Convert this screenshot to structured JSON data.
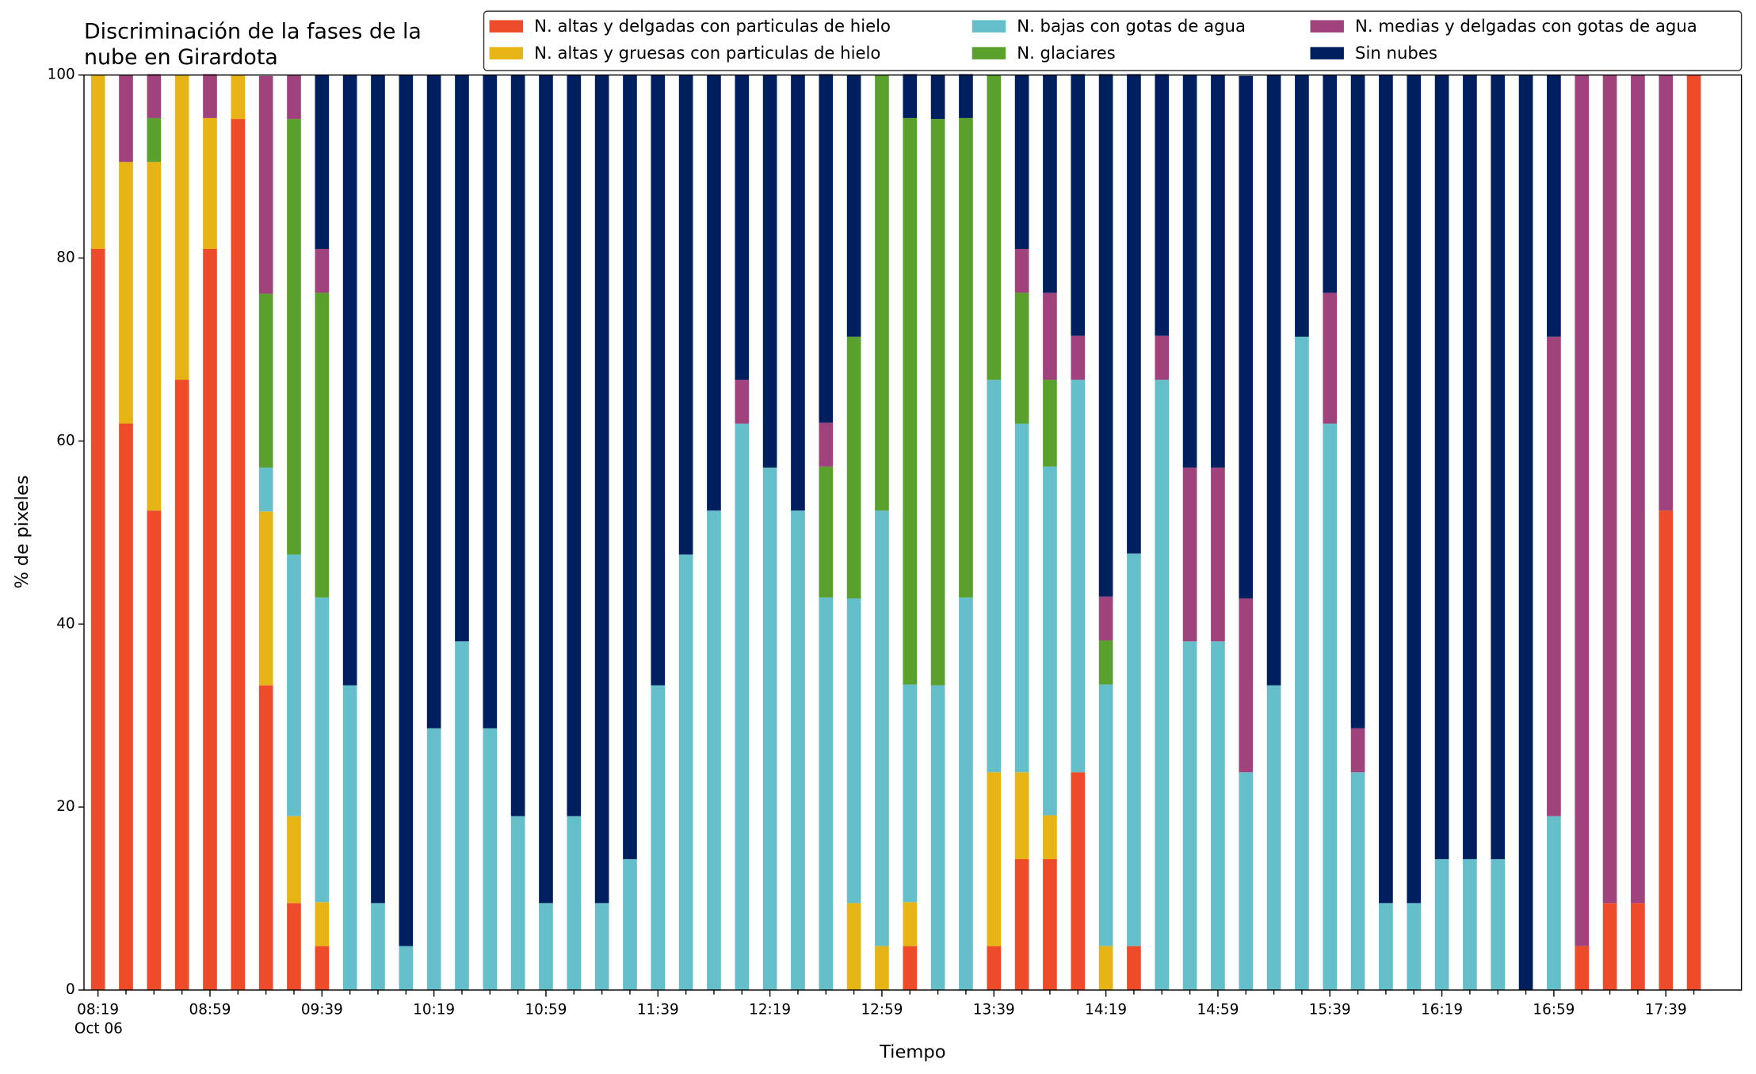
{
  "chart_data": {
    "type": "stacked_bar",
    "title": [
      "Discriminación de la fases de la",
      "nube en Girardota"
    ],
    "x_label": "Tiempo",
    "y_label": "% de pixeles",
    "x_date_label": "Oct 06",
    "categories": [
      "08:19",
      null,
      null,
      null,
      "08:59",
      null,
      null,
      null,
      "09:39",
      null,
      null,
      null,
      "10:19",
      null,
      null,
      null,
      "10:59",
      null,
      null,
      null,
      "11:39",
      null,
      null,
      null,
      "12:19",
      null,
      null,
      null,
      "12:59",
      null,
      null,
      null,
      "13:39",
      null,
      null,
      null,
      "14:19",
      null,
      null,
      null,
      "14:59",
      null,
      null,
      null,
      "15:39",
      null,
      null,
      null,
      "16:19",
      null,
      null,
      null,
      "16:59",
      null,
      null,
      null,
      "17:39",
      null
    ],
    "ylim": [
      0,
      100
    ],
    "yticks": [
      0,
      20,
      40,
      60,
      80,
      100
    ],
    "series": [
      {
        "name": "N. altas y delgadas con particulas de hielo",
        "color": "#ee4b2b",
        "values": [
          81,
          61.9,
          52.4,
          66.7,
          81,
          95.2,
          33.3,
          9.5,
          4.8,
          0,
          0,
          0,
          0,
          0,
          0,
          0,
          0,
          0,
          0,
          0,
          0,
          0,
          0,
          0,
          0,
          0,
          0,
          0,
          0,
          4.8,
          0,
          0,
          4.8,
          14.3,
          14.3,
          23.8,
          0,
          4.8,
          0,
          0,
          0,
          0,
          0,
          0,
          0,
          0,
          0,
          0,
          0,
          0,
          0,
          0,
          0,
          4.8,
          9.5,
          9.5,
          52.4,
          100
        ]
      },
      {
        "name": "N. altas y gruesas con particulas de hielo",
        "color": "#e6b415",
        "values": [
          19,
          28.6,
          38.1,
          33.3,
          14.3,
          4.8,
          19,
          9.5,
          4.8,
          0,
          0,
          0,
          0,
          0,
          0,
          0,
          0,
          0,
          0,
          0,
          0,
          0,
          0,
          0,
          0,
          0,
          0,
          9.5,
          4.8,
          4.8,
          0,
          0,
          19,
          9.5,
          4.8,
          0,
          4.8,
          0,
          0,
          0,
          0,
          0,
          0,
          0,
          0,
          0,
          0,
          0,
          0,
          0,
          0,
          0,
          0,
          0,
          0,
          0,
          0,
          0
        ]
      },
      {
        "name": "N. bajas con gotas de agua",
        "color": "#64bfca",
        "values": [
          0,
          0,
          0,
          0,
          0,
          0,
          4.8,
          28.6,
          33.3,
          33.3,
          9.5,
          4.8,
          28.6,
          38.1,
          28.6,
          19,
          9.5,
          19,
          9.5,
          14.3,
          33.3,
          47.6,
          52.4,
          61.9,
          57.1,
          52.4,
          42.9,
          33.3,
          47.6,
          23.8,
          33.3,
          42.9,
          42.9,
          38.1,
          38.1,
          42.9,
          28.6,
          42.9,
          66.7,
          38.1,
          38.1,
          23.8,
          33.3,
          71.4,
          61.9,
          23.8,
          9.5,
          9.5,
          14.3,
          14.3,
          14.3,
          0,
          19,
          0,
          0,
          0,
          0,
          0
        ]
      },
      {
        "name": "N. glaciares",
        "color": "#5aa02c",
        "values": [
          0,
          0,
          4.8,
          0,
          0,
          0,
          19,
          47.6,
          33.3,
          0,
          0,
          0,
          0,
          0,
          0,
          0,
          0,
          0,
          0,
          0,
          0,
          0,
          0,
          0,
          0,
          0,
          14.3,
          28.6,
          47.6,
          61.9,
          61.9,
          52.4,
          33.3,
          14.3,
          9.5,
          0,
          4.8,
          0,
          0,
          0,
          0,
          0,
          0,
          0,
          0,
          0,
          0,
          0,
          0,
          0,
          0,
          0,
          0,
          0,
          0,
          0,
          0,
          0
        ]
      },
      {
        "name": "N. medias y delgadas con gotas de agua",
        "color": "#a0427c",
        "values": [
          0,
          9.5,
          4.8,
          0,
          4.8,
          0,
          23.8,
          4.8,
          4.8,
          0,
          0,
          0,
          0,
          0,
          0,
          0,
          0,
          0,
          0,
          0,
          0,
          0,
          0,
          4.8,
          0,
          0,
          4.8,
          0,
          0,
          0,
          0,
          0,
          0,
          4.8,
          9.5,
          4.8,
          4.8,
          0,
          4.8,
          19,
          19,
          19,
          0,
          0,
          14.3,
          4.8,
          0,
          0,
          0,
          0,
          0,
          0,
          52.4,
          95.2,
          90.5,
          90.5,
          47.6,
          0
        ]
      },
      {
        "name": "Sin nubes",
        "color": "#001f5e",
        "values": [
          0,
          0,
          0,
          0,
          0,
          0,
          0,
          0,
          19,
          66.7,
          90.5,
          95.2,
          71.4,
          61.9,
          71.4,
          81,
          90.5,
          81,
          90.5,
          85.7,
          66.7,
          52.4,
          47.6,
          33.3,
          42.9,
          47.6,
          38.1,
          28.6,
          0,
          4.8,
          4.8,
          4.8,
          0,
          19,
          23.8,
          28.6,
          57.1,
          52.4,
          28.6,
          42.9,
          42.9,
          57.1,
          66.7,
          28.6,
          23.8,
          71.4,
          90.5,
          90.5,
          85.7,
          85.7,
          85.7,
          100,
          28.6,
          0,
          0,
          0,
          0,
          0
        ]
      }
    ]
  }
}
